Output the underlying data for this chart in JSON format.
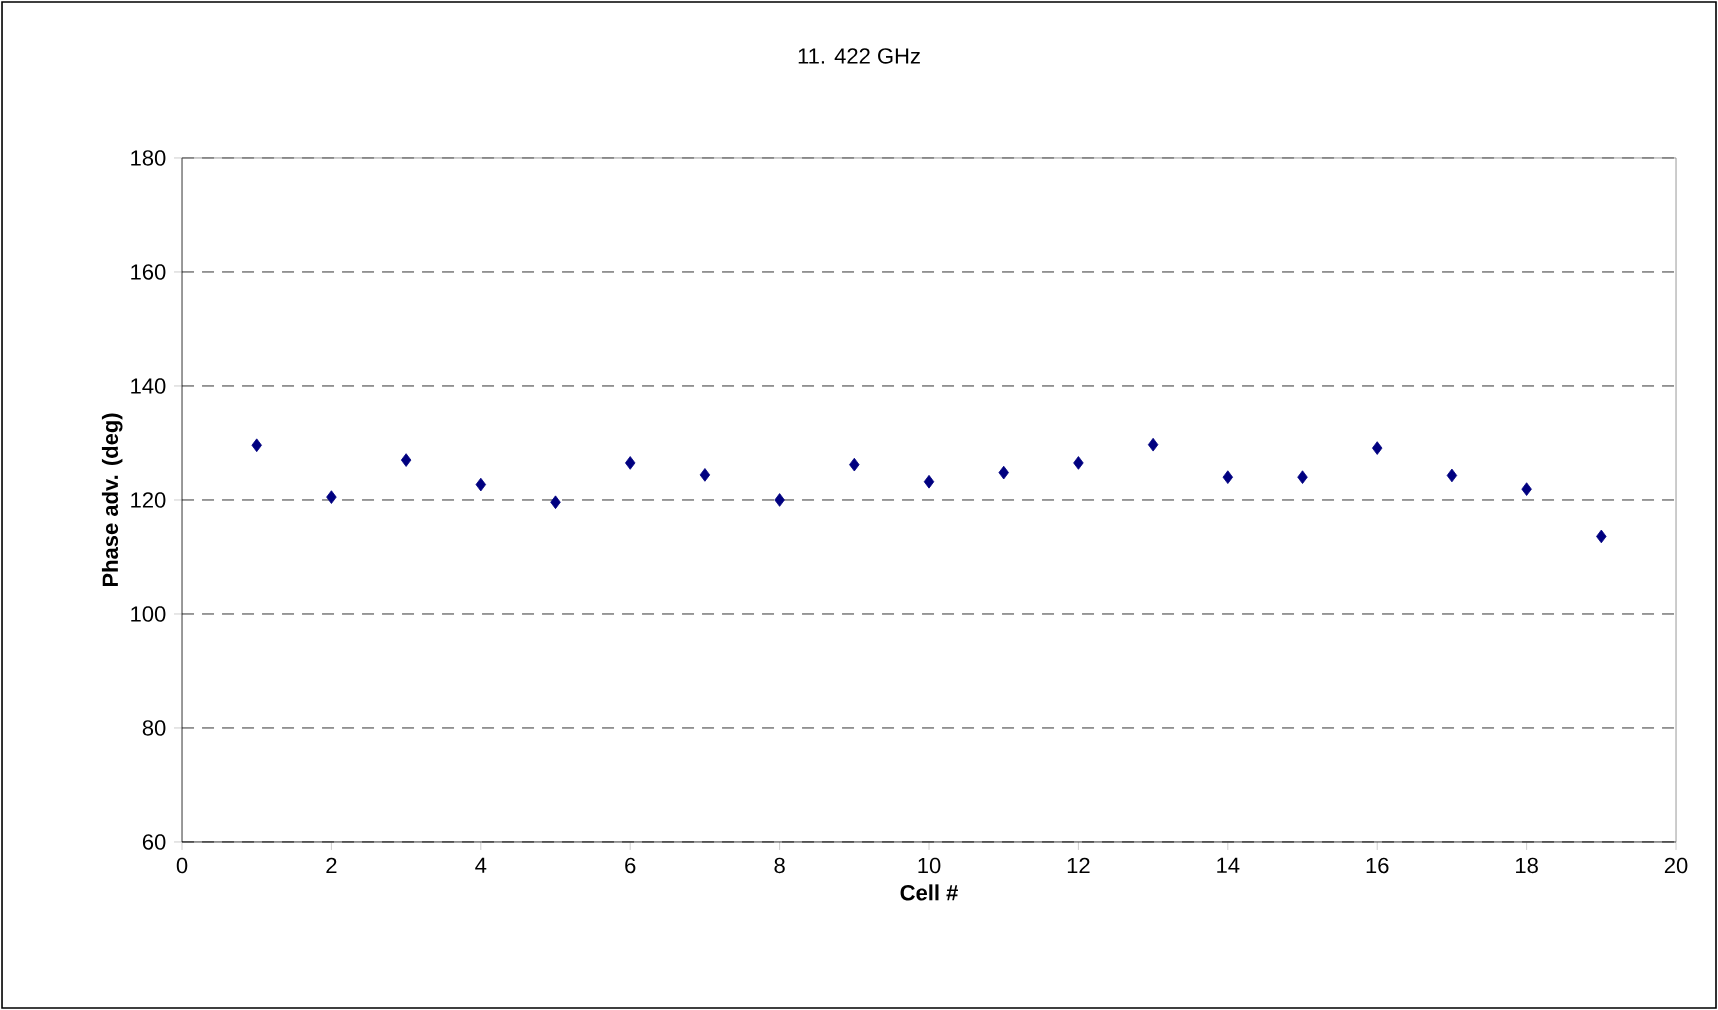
{
  "chart_data": {
    "type": "scatter",
    "title": "11. 422 GHz",
    "xlabel": "Cell #",
    "ylabel": "Phase adv. (deg)",
    "x": [
      1,
      2,
      3,
      4,
      5,
      6,
      7,
      8,
      9,
      10,
      11,
      12,
      13,
      14,
      15,
      16,
      17,
      18,
      19
    ],
    "series": [
      {
        "color": "#000080",
        "values": [
          129.6,
          120.5,
          127.0,
          122.7,
          119.6,
          126.5,
          124.4,
          120.0,
          126.2,
          123.2,
          124.8,
          126.5,
          129.7,
          124.0,
          124.0,
          129.1,
          124.3,
          121.9,
          113.6
        ]
      }
    ],
    "marker": "diamond",
    "grid": "y",
    "xlim": [
      0,
      20
    ],
    "ylim": [
      60,
      180
    ],
    "xticks": [
      0,
      2,
      4,
      6,
      8,
      10,
      12,
      14,
      16,
      18,
      20
    ],
    "yticks": [
      60,
      80,
      100,
      120,
      140,
      160,
      180
    ]
  }
}
